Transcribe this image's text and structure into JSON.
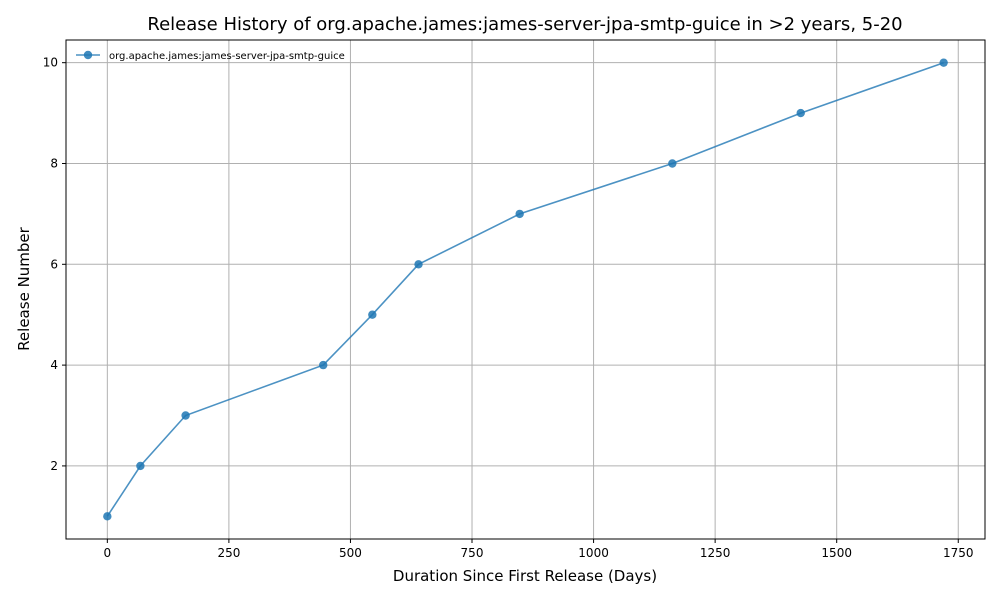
{
  "chart_data": {
    "type": "line",
    "title": "Release History of org.apache.james:james-server-jpa-smtp-guice in >2 years, 5-20",
    "xlabel": "Duration Since First Release (Days)",
    "ylabel": "Release Number",
    "xlim": [
      -85,
      1805
    ],
    "ylim": [
      0.55,
      10.45
    ],
    "xticks": [
      0,
      250,
      500,
      750,
      1000,
      1250,
      1500,
      1750
    ],
    "yticks": [
      2,
      4,
      6,
      8,
      10
    ],
    "grid": true,
    "legend_position": "top-left",
    "series": [
      {
        "name": "org.apache.james:james-server-jpa-smtp-guice",
        "color": "#1f77b4",
        "x": [
          0,
          68,
          161,
          444,
          545,
          640,
          848,
          1162,
          1426,
          1720
        ],
        "y": [
          1,
          2,
          3,
          4,
          5,
          6,
          7,
          8,
          9,
          10
        ]
      }
    ]
  }
}
